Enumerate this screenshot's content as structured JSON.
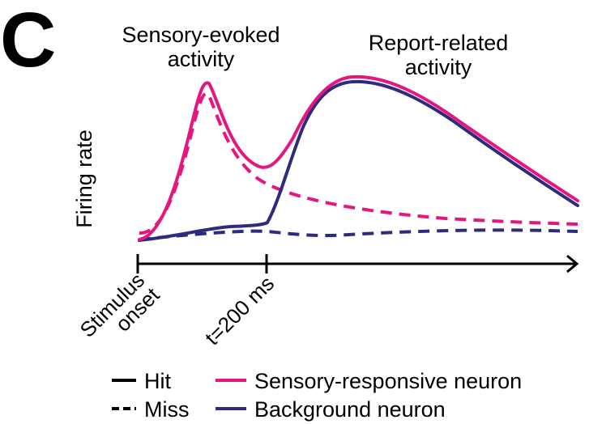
{
  "panel_label": "C",
  "annotations": {
    "sensory_line1": "Sensory-evoked",
    "sensory_line2": "activity",
    "report_line1": "Report-related",
    "report_line2": "activity"
  },
  "y_axis_label": "Firing rate",
  "x_axis": {
    "tick_stimulus_line1": "Stimulus",
    "tick_stimulus_line2": "onset",
    "tick_200": "t=200 ms"
  },
  "legend": {
    "hit": "Hit",
    "miss": "Miss",
    "sensory_neuron": "Sensory-responsive neuron",
    "background_neuron": "Background neuron"
  },
  "colors": {
    "sensory": "#e5177f",
    "background": "#2e2a7e",
    "axis": "#000000"
  }
}
